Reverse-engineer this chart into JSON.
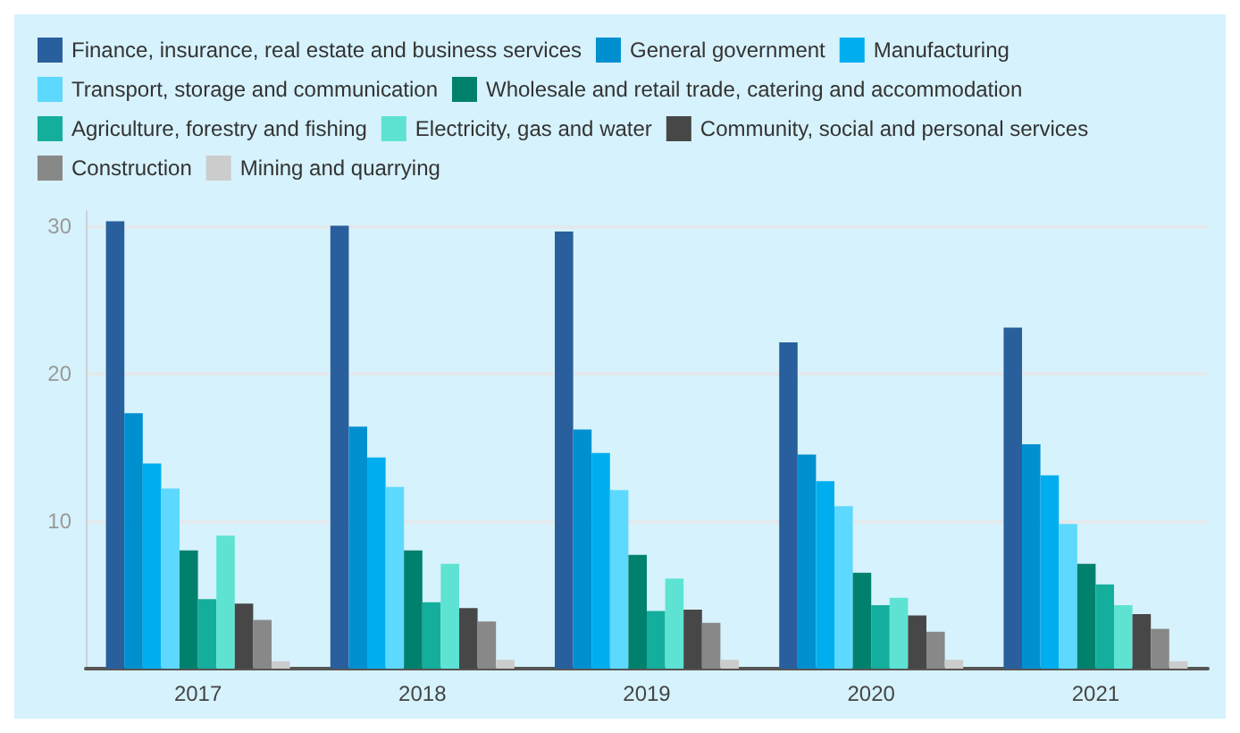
{
  "chart_data": {
    "type": "bar",
    "categories": [
      "2017",
      "2018",
      "2019",
      "2020",
      "2021"
    ],
    "series": [
      {
        "name": "Finance, insurance, real estate and business services",
        "color": "#2a5f9e",
        "values": [
          30.3,
          30.0,
          29.6,
          22.1,
          23.1
        ]
      },
      {
        "name": "General government",
        "color": "#0090d0",
        "values": [
          17.3,
          16.4,
          16.2,
          14.5,
          15.2
        ]
      },
      {
        "name": "Manufacturing",
        "color": "#00aeef",
        "values": [
          13.9,
          14.3,
          14.6,
          12.7,
          13.1
        ]
      },
      {
        "name": "Transport, storage and communication",
        "color": "#5dd8fe",
        "values": [
          12.2,
          12.3,
          12.1,
          11.0,
          9.8
        ]
      },
      {
        "name": "Wholesale and retail trade, catering and accommodation",
        "color": "#00816d",
        "values": [
          8.0,
          8.0,
          7.7,
          6.5,
          7.1
        ]
      },
      {
        "name": "Agriculture, forestry and fishing",
        "color": "#14ae9c",
        "values": [
          4.7,
          4.5,
          3.9,
          4.3,
          5.7
        ]
      },
      {
        "name": "Electricity, gas and water",
        "color": "#5ee3d3",
        "values": [
          9.0,
          7.1,
          6.1,
          4.8,
          4.3
        ]
      },
      {
        "name": "Community, social and personal services",
        "color": "#474747",
        "values": [
          4.4,
          4.1,
          4.0,
          3.6,
          3.7
        ]
      },
      {
        "name": "Construction",
        "color": "#888888",
        "values": [
          3.3,
          3.2,
          3.1,
          2.5,
          2.7
        ]
      },
      {
        "name": "Mining and quarrying",
        "color": "#cccccc",
        "values": [
          0.5,
          0.6,
          0.6,
          0.6,
          0.5
        ]
      }
    ],
    "ylim": [
      0,
      31
    ],
    "yticks": [
      10,
      20,
      30
    ],
    "grid": "y",
    "legend": "top left"
  }
}
